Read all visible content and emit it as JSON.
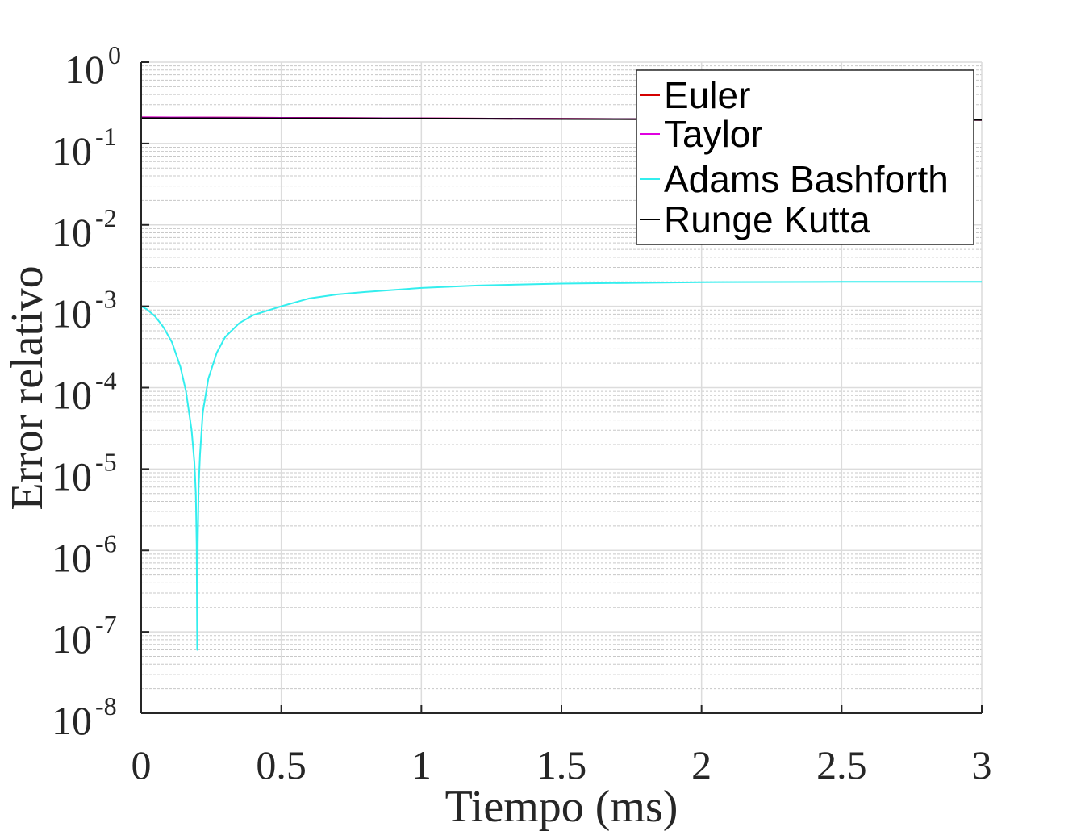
{
  "chart_data": {
    "type": "line",
    "xlabel": "Tiempo (ms)",
    "ylabel": "Error relativo",
    "xlim": [
      0,
      3
    ],
    "ylim": [
      1e-08,
      1
    ],
    "y_scale": "log",
    "grid": true,
    "minor_grid": true,
    "legend_position": "top-right",
    "x_ticks": [
      {
        "value": 0,
        "label": "0"
      },
      {
        "value": 0.5,
        "label": "0.5"
      },
      {
        "value": 1,
        "label": "1"
      },
      {
        "value": 1.5,
        "label": "1.5"
      },
      {
        "value": 2,
        "label": "2"
      },
      {
        "value": 2.5,
        "label": "2.5"
      },
      {
        "value": 3,
        "label": "3"
      }
    ],
    "y_ticks": [
      {
        "value": 1,
        "base": "10",
        "exp": "0"
      },
      {
        "value": 0.1,
        "base": "10",
        "exp": "-1"
      },
      {
        "value": 0.01,
        "base": "10",
        "exp": "-2"
      },
      {
        "value": 0.001,
        "base": "10",
        "exp": "-3"
      },
      {
        "value": 0.0001,
        "base": "10",
        "exp": "-4"
      },
      {
        "value": 1e-05,
        "base": "10",
        "exp": "-5"
      },
      {
        "value": 1e-06,
        "base": "10",
        "exp": "-6"
      },
      {
        "value": 1e-07,
        "base": "10",
        "exp": "-7"
      },
      {
        "value": 1e-08,
        "base": "10",
        "exp": "-8"
      }
    ],
    "series": [
      {
        "name": "Euler",
        "color": "#d40000",
        "x": [
          0,
          0.5,
          1.0,
          1.5,
          2.0,
          2.5,
          3.0
        ],
        "y": [
          0.21,
          0.207,
          0.204,
          0.201,
          0.199,
          0.197,
          0.195
        ]
      },
      {
        "name": "Taylor",
        "color": "#e000e0",
        "x": [
          0,
          0.5,
          1.0,
          1.5,
          2.0,
          2.5,
          3.0
        ],
        "y": [
          0.21,
          0.207,
          0.204,
          0.201,
          0.199,
          0.197,
          0.195
        ]
      },
      {
        "name": "Adams Bashforth",
        "color": "#33eeee",
        "x": [
          0,
          0,
          0.02,
          0.05,
          0.08,
          0.11,
          0.14,
          0.16,
          0.18,
          0.19,
          0.195,
          0.198,
          0.2,
          0.202,
          0.205,
          0.21,
          0.22,
          0.24,
          0.27,
          0.3,
          0.35,
          0.4,
          0.5,
          0.6,
          0.7,
          0.8,
          1.0,
          1.2,
          1.5,
          2.0,
          2.5,
          3.0
        ],
        "y": [
          0.0019,
          0.001,
          0.00092,
          0.00075,
          0.00055,
          0.00036,
          0.00018,
          9e-05,
          3e-05,
          1.2e-05,
          5e-06,
          1.2e-06,
          6e-08,
          1.2e-06,
          6e-06,
          1.5e-05,
          5e-05,
          0.00013,
          0.00027,
          0.00042,
          0.00062,
          0.00078,
          0.001,
          0.00125,
          0.0014,
          0.0015,
          0.00168,
          0.0018,
          0.0019,
          0.00198,
          0.002,
          0.002
        ]
      },
      {
        "name": "Runge Kutta",
        "color": "#000000",
        "x": [
          0,
          0.5,
          1.0,
          1.5,
          2.0,
          2.5,
          3.0
        ],
        "y": [
          0.205,
          0.204,
          0.203,
          0.2,
          0.199,
          0.197,
          0.195
        ]
      }
    ]
  }
}
